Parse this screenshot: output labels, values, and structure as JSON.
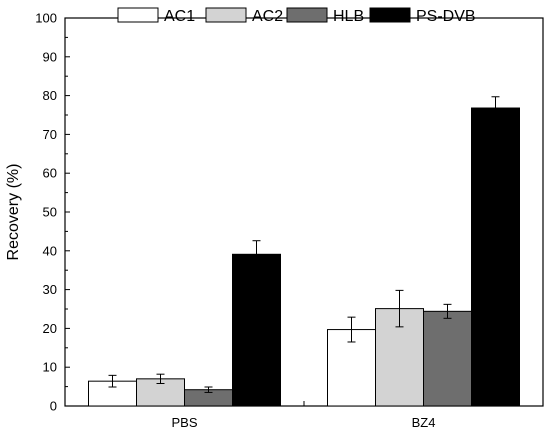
{
  "chart_data": {
    "type": "bar",
    "title": "",
    "xlabel": "",
    "ylabel": "Recovery (%)",
    "ylim": [
      0,
      100
    ],
    "yticks": [
      0,
      10,
      20,
      30,
      40,
      50,
      60,
      70,
      80,
      90,
      100
    ],
    "categories": [
      "PBS",
      "BZ4"
    ],
    "series": [
      {
        "name": "AC1",
        "color": "#ffffff",
        "values": [
          6.4,
          19.7
        ],
        "errors": [
          1.5,
          3.2
        ]
      },
      {
        "name": "AC2",
        "color": "#d3d3d3",
        "values": [
          7.0,
          25.1
        ],
        "errors": [
          1.2,
          4.7
        ]
      },
      {
        "name": "HLB",
        "color": "#6e6e6e",
        "values": [
          4.2,
          24.4
        ],
        "errors": [
          0.7,
          1.8
        ]
      },
      {
        "name": "PS-DVB",
        "color": "#000000",
        "values": [
          39.1,
          76.8
        ],
        "errors": [
          3.5,
          2.9
        ]
      }
    ],
    "legend_position": "top",
    "grid": false
  }
}
